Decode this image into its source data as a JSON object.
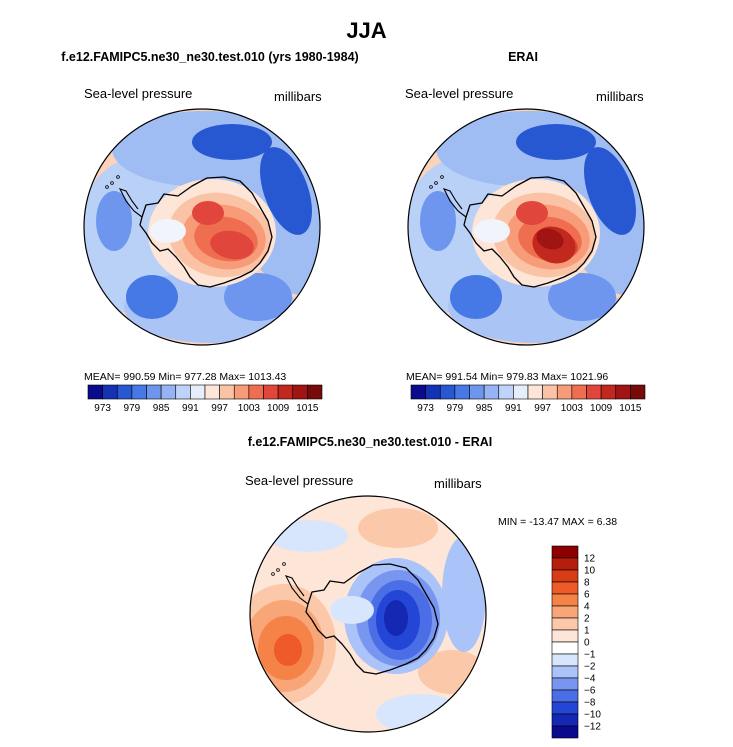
{
  "figure": {
    "title": "JJA",
    "variable_label": "Sea-level pressure",
    "units_label": "millibars"
  },
  "panels": {
    "model": {
      "title": "f.e12.FAMIPC5.ne30_ne30.test.010 (yrs 1980-1984)",
      "variable_label": "Sea-level pressure",
      "units_label": "millibars",
      "stats_text": "MEAN= 990.59   Min= 977.28   Max= 1013.43"
    },
    "obs": {
      "title": "ERAI",
      "variable_label": "Sea-level pressure",
      "units_label": "millibars",
      "stats_text": "MEAN= 991.54   Min= 979.83   Max= 1021.96"
    },
    "diff": {
      "title": "f.e12.FAMIPC5.ne30_ne30.test.010 - ERAI",
      "variable_label": "Sea-level pressure",
      "units_label": "millibars",
      "stats_text": "MIN =  -13.47  MAX =    6.38"
    }
  },
  "chart_data": [
    {
      "type": "heatmap",
      "projection": "south-polar-stereographic",
      "title": "f.e12.FAMIPC5.ne30_ne30.test.010 (yrs 1980-1984)",
      "variable": "Sea-level pressure",
      "units": "millibars",
      "stats": {
        "mean": 990.59,
        "min": 977.28,
        "max": 1013.43
      },
      "colorbar": {
        "orientation": "horizontal",
        "ticks": [
          973,
          979,
          985,
          991,
          997,
          1003,
          1009,
          1015
        ],
        "colors": [
          "#0a0a8c",
          "#1432b4",
          "#2857d2",
          "#4678e6",
          "#6e96ee",
          "#96b4f5",
          "#bed2fa",
          "#e6eefc",
          "#fde6d8",
          "#fbc3a5",
          "#f89b78",
          "#f06e50",
          "#e1463c",
          "#c3281e",
          "#a01414",
          "#780a0a"
        ]
      }
    },
    {
      "type": "heatmap",
      "projection": "south-polar-stereographic",
      "title": "ERAI",
      "variable": "Sea-level pressure",
      "units": "millibars",
      "stats": {
        "mean": 991.54,
        "min": 979.83,
        "max": 1021.96
      },
      "colorbar": {
        "orientation": "horizontal",
        "ticks": [
          973,
          979,
          985,
          991,
          997,
          1003,
          1009,
          1015
        ],
        "colors": [
          "#0a0a8c",
          "#1432b4",
          "#2857d2",
          "#4678e6",
          "#6e96ee",
          "#96b4f5",
          "#bed2fa",
          "#e6eefc",
          "#fde6d8",
          "#fbc3a5",
          "#f89b78",
          "#f06e50",
          "#e1463c",
          "#c3281e",
          "#a01414",
          "#780a0a"
        ]
      }
    },
    {
      "type": "heatmap",
      "projection": "south-polar-stereographic",
      "title": "f.e12.FAMIPC5.ne30_ne30.test.010 - ERAI",
      "variable": "Sea-level pressure",
      "units": "millibars",
      "stats": {
        "min": -13.47,
        "max": 6.38
      },
      "colorbar": {
        "orientation": "vertical",
        "ticks": [
          12,
          10,
          8,
          6,
          4,
          2,
          1,
          0,
          -1,
          -2,
          -4,
          -6,
          -8,
          -10,
          -12
        ],
        "colors": [
          "#8c0000",
          "#b41e0a",
          "#d73c14",
          "#ee5a28",
          "#f58246",
          "#f8a578",
          "#fbc8aa",
          "#fde6d8",
          "#ffffff",
          "#d7e6fc",
          "#aac3f8",
          "#7896f0",
          "#4b6ee6",
          "#2346d7",
          "#1428b4",
          "#0a0a8c"
        ]
      }
    }
  ],
  "colors": {
    "land_outline": "#000000",
    "frame": "#000000",
    "background": "#ffffff"
  }
}
